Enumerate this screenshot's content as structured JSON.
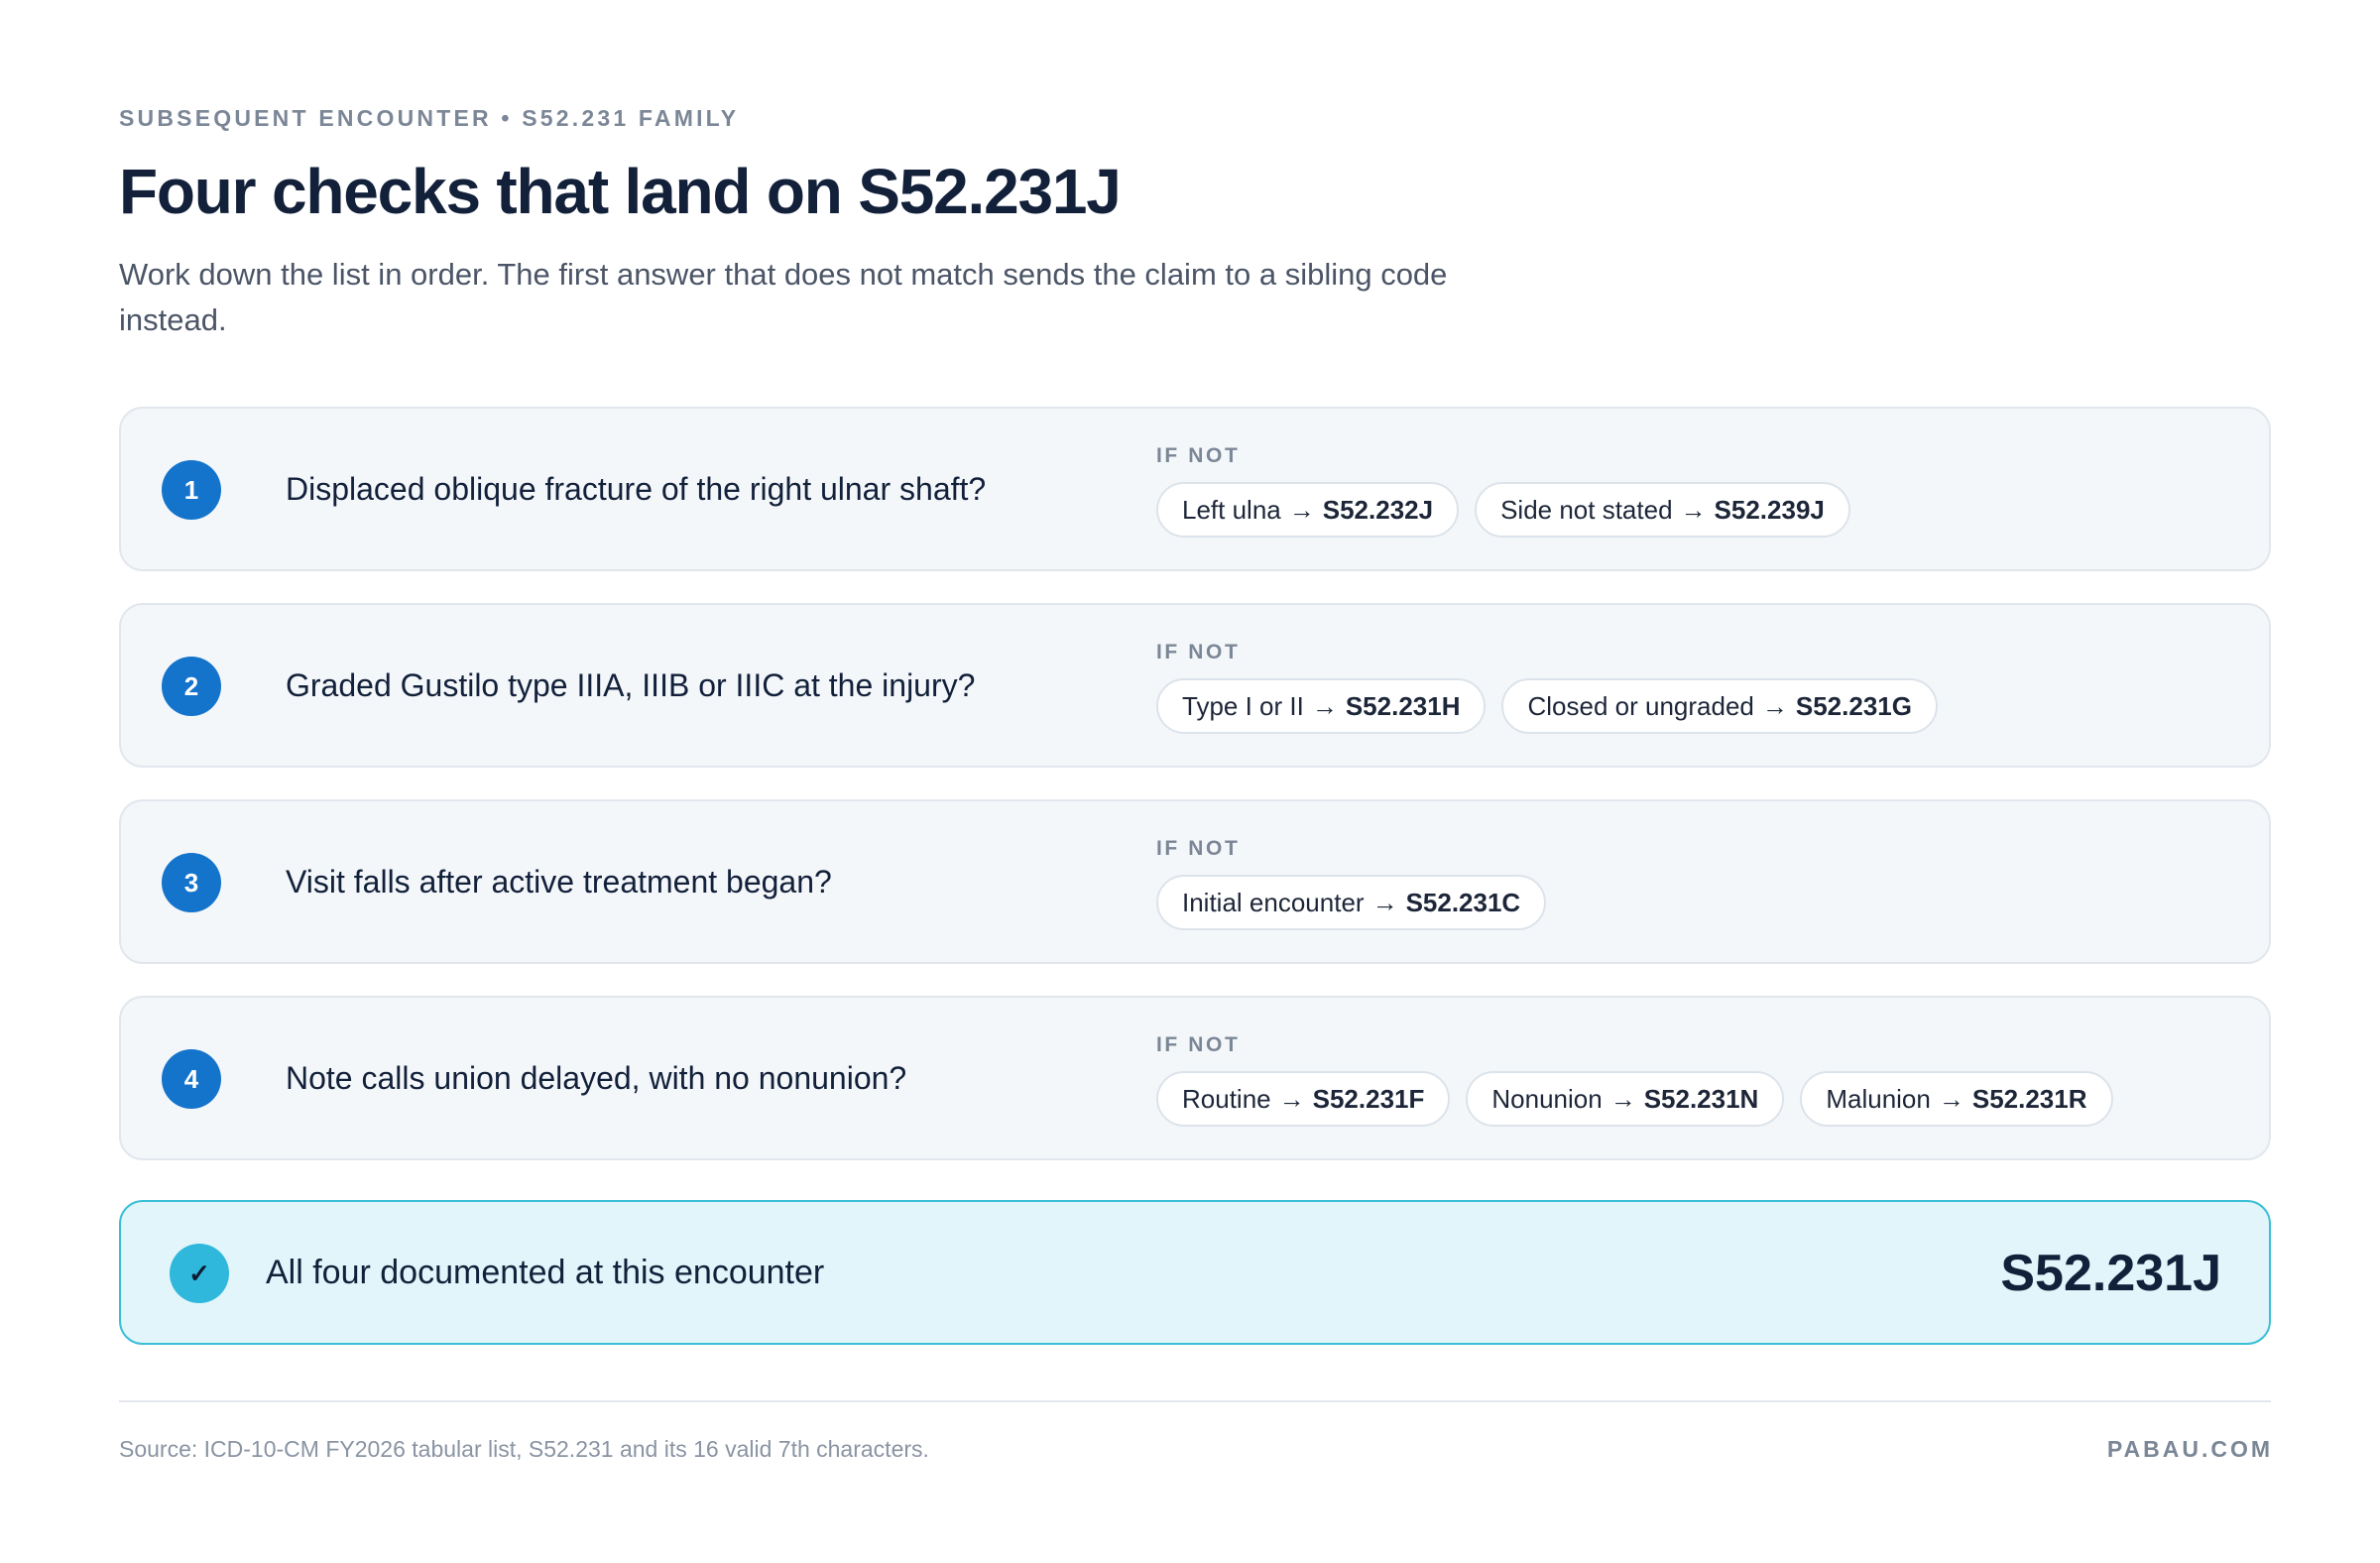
{
  "header": {
    "eyebrow": "SUBSEQUENT ENCOUNTER • S52.231 FAMILY",
    "title": "Four checks that land on S52.231J",
    "subtitle": "Work down the list in order. The first answer that does not match sends the claim to a sibling code instead."
  },
  "steps": [
    {
      "number": "1",
      "question": "Displaced oblique fracture of the right ulnar shaft?",
      "if_not_label": "IF NOT",
      "alternatives": [
        {
          "label": "Left ulna",
          "arrow": "→",
          "code": "S52.232J"
        },
        {
          "label": "Side not stated",
          "arrow": "→",
          "code": "S52.239J"
        }
      ]
    },
    {
      "number": "2",
      "question": "Graded Gustilo type IIIA, IIIB or IIIC at the injury?",
      "if_not_label": "IF NOT",
      "alternatives": [
        {
          "label": "Type I or II",
          "arrow": "→",
          "code": "S52.231H"
        },
        {
          "label": "Closed or ungraded",
          "arrow": "→",
          "code": "S52.231G"
        }
      ]
    },
    {
      "number": "3",
      "question": "Visit falls after active treatment began?",
      "if_not_label": "IF NOT",
      "alternatives": [
        {
          "label": "Initial encounter",
          "arrow": "→",
          "code": "S52.231C"
        }
      ]
    },
    {
      "number": "4",
      "question": "Note calls union delayed, with no nonunion?",
      "if_not_label": "IF NOT",
      "alternatives": [
        {
          "label": "Routine",
          "arrow": "→",
          "code": "S52.231F"
        },
        {
          "label": "Nonunion",
          "arrow": "→",
          "code": "S52.231N"
        },
        {
          "label": "Malunion",
          "arrow": "→",
          "code": "S52.231R"
        }
      ]
    }
  ],
  "result": {
    "icon": "checkmark-icon",
    "check_glyph": "✓",
    "text": "All four documented at this encounter",
    "code": "S52.231J"
  },
  "footer": {
    "source": "Source: ICD-10-CM FY2026 tabular list, S52.231 and its 16 valid 7th characters.",
    "brand": "PABAU.COM"
  },
  "colors": {
    "accent": "#1474cc",
    "result_bg": "#e2f5fa",
    "result_border": "#3bbfd6",
    "card_bg": "#f4f7fa"
  }
}
